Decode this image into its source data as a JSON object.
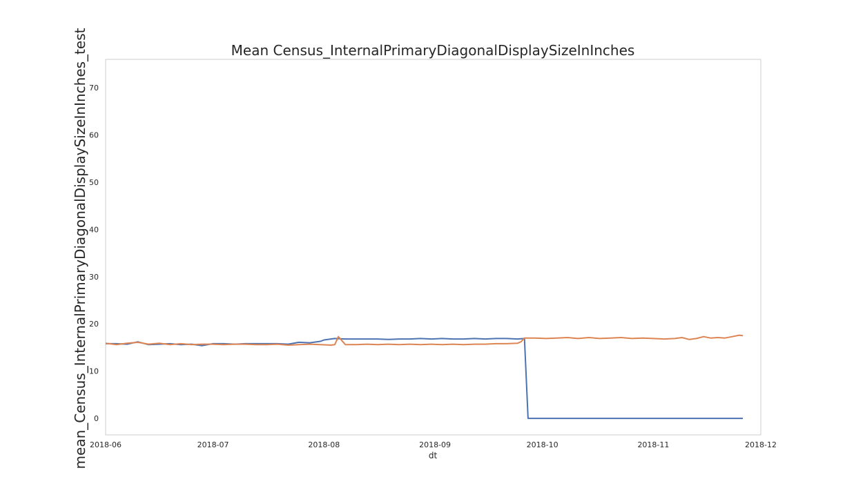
{
  "chart_data": {
    "type": "line",
    "title": "Mean Census_InternalPrimaryDiagonalDisplaySizeInInches",
    "xlabel": "dt",
    "ylabel": "mean_Census_InternalPrimaryDiagonalDisplaySizeInInches_test",
    "xlim": [
      "2018-06-01",
      "2018-12-01"
    ],
    "ylim": [
      -3.5,
      76
    ],
    "x_ticks": [
      "2018-06",
      "2018-07",
      "2018-08",
      "2018-09",
      "2018-10",
      "2018-11",
      "2018-12"
    ],
    "y_ticks": [
      0,
      10,
      20,
      30,
      40,
      50,
      60,
      70
    ],
    "grid": false,
    "legend": null,
    "series": [
      {
        "color": "#4c72b0",
        "points": [
          [
            "2018-06-01",
            15.8
          ],
          [
            "2018-06-04",
            15.8
          ],
          [
            "2018-06-07",
            15.7
          ],
          [
            "2018-06-10",
            16.2
          ],
          [
            "2018-06-13",
            15.6
          ],
          [
            "2018-06-16",
            15.7
          ],
          [
            "2018-06-19",
            15.8
          ],
          [
            "2018-06-22",
            15.6
          ],
          [
            "2018-06-25",
            15.7
          ],
          [
            "2018-06-28",
            15.4
          ],
          [
            "2018-07-01",
            15.8
          ],
          [
            "2018-07-04",
            15.8
          ],
          [
            "2018-07-07",
            15.7
          ],
          [
            "2018-07-10",
            15.8
          ],
          [
            "2018-07-13",
            15.8
          ],
          [
            "2018-07-16",
            15.8
          ],
          [
            "2018-07-19",
            15.8
          ],
          [
            "2018-07-22",
            15.7
          ],
          [
            "2018-07-25",
            16.1
          ],
          [
            "2018-07-28",
            16.0
          ],
          [
            "2018-07-31",
            16.3
          ],
          [
            "2018-08-01",
            16.6
          ],
          [
            "2018-08-04",
            16.9
          ],
          [
            "2018-08-07",
            16.8
          ],
          [
            "2018-08-10",
            16.8
          ],
          [
            "2018-08-13",
            16.8
          ],
          [
            "2018-08-16",
            16.8
          ],
          [
            "2018-08-19",
            16.7
          ],
          [
            "2018-08-22",
            16.8
          ],
          [
            "2018-08-25",
            16.8
          ],
          [
            "2018-08-28",
            16.9
          ],
          [
            "2018-08-31",
            16.8
          ],
          [
            "2018-09-03",
            16.9
          ],
          [
            "2018-09-06",
            16.8
          ],
          [
            "2018-09-09",
            16.8
          ],
          [
            "2018-09-12",
            16.9
          ],
          [
            "2018-09-15",
            16.8
          ],
          [
            "2018-09-18",
            16.9
          ],
          [
            "2018-09-21",
            16.9
          ],
          [
            "2018-09-24",
            16.8
          ],
          [
            "2018-09-26",
            16.9
          ],
          [
            "2018-09-27",
            0.0
          ],
          [
            "2018-10-15",
            0.0
          ],
          [
            "2018-11-01",
            0.0
          ],
          [
            "2018-11-15",
            0.0
          ],
          [
            "2018-11-26",
            0.0
          ]
        ]
      },
      {
        "color": "#dd8452",
        "points": [
          [
            "2018-06-01",
            15.9
          ],
          [
            "2018-06-04",
            15.6
          ],
          [
            "2018-06-07",
            15.9
          ],
          [
            "2018-06-10",
            16.1
          ],
          [
            "2018-06-13",
            15.7
          ],
          [
            "2018-06-16",
            15.9
          ],
          [
            "2018-06-19",
            15.6
          ],
          [
            "2018-06-22",
            15.8
          ],
          [
            "2018-06-25",
            15.6
          ],
          [
            "2018-06-28",
            15.7
          ],
          [
            "2018-07-01",
            15.7
          ],
          [
            "2018-07-04",
            15.6
          ],
          [
            "2018-07-07",
            15.7
          ],
          [
            "2018-07-10",
            15.7
          ],
          [
            "2018-07-13",
            15.6
          ],
          [
            "2018-07-16",
            15.6
          ],
          [
            "2018-07-19",
            15.7
          ],
          [
            "2018-07-22",
            15.5
          ],
          [
            "2018-07-25",
            15.6
          ],
          [
            "2018-07-28",
            15.7
          ],
          [
            "2018-07-31",
            15.6
          ],
          [
            "2018-08-03",
            15.5
          ],
          [
            "2018-08-04",
            15.6
          ],
          [
            "2018-08-05",
            17.3
          ],
          [
            "2018-08-07",
            15.6
          ],
          [
            "2018-08-10",
            15.6
          ],
          [
            "2018-08-13",
            15.7
          ],
          [
            "2018-08-16",
            15.6
          ],
          [
            "2018-08-19",
            15.7
          ],
          [
            "2018-08-22",
            15.6
          ],
          [
            "2018-08-25",
            15.7
          ],
          [
            "2018-08-28",
            15.6
          ],
          [
            "2018-08-31",
            15.7
          ],
          [
            "2018-09-03",
            15.6
          ],
          [
            "2018-09-06",
            15.7
          ],
          [
            "2018-09-09",
            15.6
          ],
          [
            "2018-09-12",
            15.7
          ],
          [
            "2018-09-15",
            15.7
          ],
          [
            "2018-09-18",
            15.8
          ],
          [
            "2018-09-21",
            15.8
          ],
          [
            "2018-09-24",
            15.9
          ],
          [
            "2018-09-25",
            16.2
          ],
          [
            "2018-09-26",
            17.0
          ],
          [
            "2018-09-29",
            17.0
          ],
          [
            "2018-10-02",
            16.9
          ],
          [
            "2018-10-05",
            17.0
          ],
          [
            "2018-10-08",
            17.1
          ],
          [
            "2018-10-11",
            16.9
          ],
          [
            "2018-10-14",
            17.1
          ],
          [
            "2018-10-17",
            16.9
          ],
          [
            "2018-10-20",
            17.0
          ],
          [
            "2018-10-23",
            17.1
          ],
          [
            "2018-10-26",
            16.9
          ],
          [
            "2018-10-29",
            17.0
          ],
          [
            "2018-11-01",
            16.9
          ],
          [
            "2018-11-04",
            16.8
          ],
          [
            "2018-11-07",
            16.9
          ],
          [
            "2018-11-09",
            17.1
          ],
          [
            "2018-11-11",
            16.7
          ],
          [
            "2018-11-13",
            16.9
          ],
          [
            "2018-11-15",
            17.3
          ],
          [
            "2018-11-17",
            17.0
          ],
          [
            "2018-11-19",
            17.1
          ],
          [
            "2018-11-21",
            17.0
          ],
          [
            "2018-11-23",
            17.3
          ],
          [
            "2018-11-25",
            17.6
          ],
          [
            "2018-11-26",
            17.5
          ]
        ]
      }
    ]
  }
}
